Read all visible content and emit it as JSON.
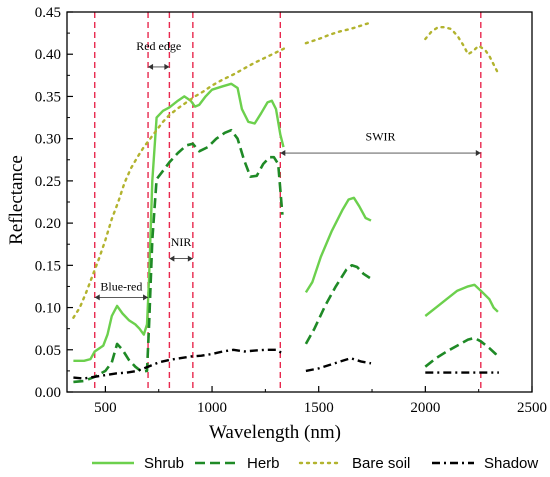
{
  "chart_data": {
    "type": "line",
    "xlabel": "Wavelength (nm)",
    "ylabel": "Reflectance",
    "xlim": [
      320,
      2500
    ],
    "ylim": [
      0,
      0.45
    ],
    "x_ticks": [
      500,
      1000,
      1500,
      2000,
      2500
    ],
    "y_ticks": [
      0.0,
      0.05,
      0.1,
      0.15,
      0.2,
      0.25,
      0.3,
      0.35,
      0.4,
      0.45
    ],
    "x_tick_labels": [
      "500",
      "1000",
      "1500",
      "2000",
      "2500"
    ],
    "y_tick_labels": [
      "0.00",
      "0.05",
      "0.10",
      "0.15",
      "0.20",
      "0.25",
      "0.30",
      "0.35",
      "0.40",
      "0.45"
    ],
    "grid": false,
    "legend_position": "bottom",
    "series": [
      {
        "name": "Shrub",
        "color": "#6cd04d",
        "style": "solid",
        "segments": [
          [
            [
              350,
              0.037
            ],
            [
              400,
              0.037
            ],
            [
              430,
              0.039
            ],
            [
              450,
              0.048
            ],
            [
              490,
              0.055
            ],
            [
              510,
              0.068
            ],
            [
              530,
              0.09
            ],
            [
              555,
              0.102
            ],
            [
              580,
              0.093
            ],
            [
              610,
              0.085
            ],
            [
              640,
              0.08
            ],
            [
              660,
              0.075
            ],
            [
              680,
              0.068
            ],
            [
              695,
              0.08
            ],
            [
              705,
              0.135
            ],
            [
              720,
              0.25
            ],
            [
              740,
              0.325
            ],
            [
              770,
              0.333
            ],
            [
              800,
              0.337
            ],
            [
              840,
              0.345
            ],
            [
              870,
              0.35
            ],
            [
              900,
              0.345
            ],
            [
              920,
              0.338
            ],
            [
              940,
              0.34
            ],
            [
              970,
              0.35
            ],
            [
              1000,
              0.358
            ],
            [
              1050,
              0.362
            ],
            [
              1090,
              0.365
            ],
            [
              1120,
              0.36
            ],
            [
              1140,
              0.335
            ],
            [
              1170,
              0.32
            ],
            [
              1200,
              0.318
            ],
            [
              1230,
              0.33
            ],
            [
              1260,
              0.343
            ],
            [
              1280,
              0.345
            ],
            [
              1300,
              0.335
            ],
            [
              1320,
              0.305
            ],
            [
              1335,
              0.29
            ]
          ],
          [
            [
              1440,
              0.118
            ],
            [
              1470,
              0.13
            ],
            [
              1510,
              0.16
            ],
            [
              1560,
              0.19
            ],
            [
              1610,
              0.215
            ],
            [
              1640,
              0.228
            ],
            [
              1665,
              0.23
            ],
            [
              1690,
              0.22
            ],
            [
              1720,
              0.206
            ],
            [
              1745,
              0.203
            ]
          ],
          [
            [
              2000,
              0.09
            ],
            [
              2050,
              0.1
            ],
            [
              2100,
              0.11
            ],
            [
              2150,
              0.12
            ],
            [
              2200,
              0.125
            ],
            [
              2230,
              0.127
            ],
            [
              2260,
              0.12
            ],
            [
              2300,
              0.11
            ],
            [
              2320,
              0.1
            ],
            [
              2340,
              0.095
            ]
          ]
        ]
      },
      {
        "name": "Herb",
        "color": "#1f8a26",
        "style": "dashed",
        "segments": [
          [
            [
              350,
              0.012
            ],
            [
              400,
              0.013
            ],
            [
              450,
              0.018
            ],
            [
              500,
              0.025
            ],
            [
              530,
              0.035
            ],
            [
              555,
              0.057
            ],
            [
              580,
              0.05
            ],
            [
              610,
              0.038
            ],
            [
              640,
              0.03
            ],
            [
              670,
              0.024
            ],
            [
              695,
              0.025
            ],
            [
              705,
              0.08
            ],
            [
              720,
              0.18
            ],
            [
              740,
              0.252
            ],
            [
              770,
              0.262
            ],
            [
              800,
              0.272
            ],
            [
              840,
              0.283
            ],
            [
              880,
              0.292
            ],
            [
              910,
              0.294
            ],
            [
              940,
              0.285
            ],
            [
              980,
              0.29
            ],
            [
              1020,
              0.3
            ],
            [
              1060,
              0.307
            ],
            [
              1090,
              0.31
            ],
            [
              1120,
              0.3
            ],
            [
              1150,
              0.275
            ],
            [
              1180,
              0.255
            ],
            [
              1210,
              0.256
            ],
            [
              1240,
              0.27
            ],
            [
              1270,
              0.278
            ],
            [
              1290,
              0.278
            ],
            [
              1310,
              0.27
            ],
            [
              1330,
              0.21
            ]
          ],
          [
            [
              1440,
              0.057
            ],
            [
              1480,
              0.075
            ],
            [
              1530,
              0.102
            ],
            [
              1580,
              0.125
            ],
            [
              1630,
              0.145
            ],
            [
              1655,
              0.15
            ],
            [
              1680,
              0.148
            ],
            [
              1710,
              0.14
            ],
            [
              1740,
              0.135
            ]
          ],
          [
            [
              2000,
              0.03
            ],
            [
              2050,
              0.04
            ],
            [
              2100,
              0.048
            ],
            [
              2150,
              0.055
            ],
            [
              2200,
              0.062
            ],
            [
              2230,
              0.064
            ],
            [
              2260,
              0.06
            ],
            [
              2300,
              0.052
            ],
            [
              2330,
              0.045
            ],
            [
              2345,
              0.04
            ]
          ]
        ]
      },
      {
        "name": "Bare soil",
        "color": "#b2b32e",
        "style": "dotted",
        "segments": [
          [
            [
              350,
              0.088
            ],
            [
              380,
              0.1
            ],
            [
              410,
              0.118
            ],
            [
              440,
              0.138
            ],
            [
              470,
              0.158
            ],
            [
              500,
              0.18
            ],
            [
              530,
              0.205
            ],
            [
              560,
              0.225
            ],
            [
              590,
              0.248
            ],
            [
              620,
              0.265
            ],
            [
              650,
              0.278
            ],
            [
              680,
              0.29
            ],
            [
              710,
              0.3
            ],
            [
              740,
              0.31
            ],
            [
              770,
              0.32
            ],
            [
              800,
              0.328
            ],
            [
              840,
              0.336
            ],
            [
              880,
              0.343
            ],
            [
              920,
              0.35
            ],
            [
              960,
              0.356
            ],
            [
              1000,
              0.363
            ],
            [
              1050,
              0.37
            ],
            [
              1100,
              0.376
            ],
            [
              1150,
              0.383
            ],
            [
              1200,
              0.39
            ],
            [
              1250,
              0.396
            ],
            [
              1300,
              0.402
            ],
            [
              1340,
              0.407
            ]
          ],
          [
            [
              1440,
              0.413
            ],
            [
              1500,
              0.418
            ],
            [
              1550,
              0.423
            ],
            [
              1600,
              0.427
            ],
            [
              1650,
              0.43
            ],
            [
              1700,
              0.434
            ],
            [
              1750,
              0.438
            ]
          ],
          [
            [
              2000,
              0.418
            ],
            [
              2030,
              0.427
            ],
            [
              2060,
              0.432
            ],
            [
              2090,
              0.432
            ],
            [
              2120,
              0.43
            ],
            [
              2150,
              0.422
            ],
            [
              2180,
              0.41
            ],
            [
              2200,
              0.4
            ],
            [
              2220,
              0.403
            ],
            [
              2250,
              0.41
            ],
            [
              2280,
              0.405
            ],
            [
              2300,
              0.398
            ],
            [
              2320,
              0.388
            ],
            [
              2340,
              0.378
            ]
          ]
        ]
      },
      {
        "name": "Shadow",
        "color": "#000000",
        "style": "dashdot",
        "segments": [
          [
            [
              350,
              0.017
            ],
            [
              400,
              0.016
            ],
            [
              450,
              0.018
            ],
            [
              500,
              0.02
            ],
            [
              550,
              0.022
            ],
            [
              600,
              0.023
            ],
            [
              650,
              0.025
            ],
            [
              700,
              0.03
            ],
            [
              750,
              0.035
            ],
            [
              800,
              0.038
            ],
            [
              850,
              0.04
            ],
            [
              900,
              0.042
            ],
            [
              950,
              0.043
            ],
            [
              1000,
              0.045
            ],
            [
              1050,
              0.048
            ],
            [
              1100,
              0.05
            ],
            [
              1150,
              0.048
            ],
            [
              1200,
              0.049
            ],
            [
              1250,
              0.05
            ],
            [
              1300,
              0.05
            ],
            [
              1330,
              0.046
            ]
          ],
          [
            [
              1440,
              0.025
            ],
            [
              1500,
              0.028
            ],
            [
              1550,
              0.032
            ],
            [
              1600,
              0.036
            ],
            [
              1650,
              0.04
            ],
            [
              1700,
              0.036
            ],
            [
              1745,
              0.034
            ]
          ],
          [
            [
              2000,
              0.023
            ],
            [
              2100,
              0.023
            ],
            [
              2200,
              0.023
            ],
            [
              2300,
              0.023
            ],
            [
              2345,
              0.023
            ]
          ]
        ]
      }
    ],
    "reference_lines": {
      "color": "#e8284e",
      "x": [
        450,
        700,
        800,
        910,
        1320,
        2260
      ]
    },
    "annotations": [
      {
        "label": "Red edge",
        "from": 700,
        "to": 800,
        "y": 0.385,
        "text_y": 0.405
      },
      {
        "label": "NIR",
        "from": 800,
        "to": 910,
        "y": 0.158,
        "text_y": 0.173
      },
      {
        "label": "Blue-red",
        "from": 450,
        "to": 700,
        "y": 0.112,
        "text_y": 0.12
      },
      {
        "label": "SWIR",
        "from": 1320,
        "to": 2260,
        "y": 0.283,
        "text_y": 0.298
      }
    ]
  }
}
